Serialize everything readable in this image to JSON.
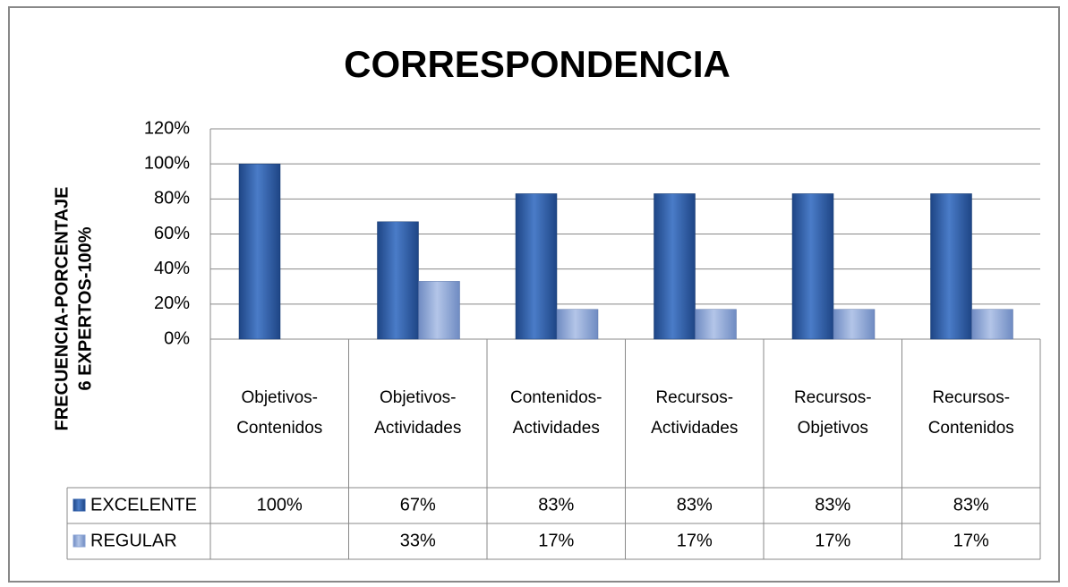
{
  "chart_data": {
    "type": "bar",
    "title": "CORRESPONDENCIA",
    "ylabel": [
      "FRECUENCIA-PORCENTAJE",
      "6 EXPERTOS-100%"
    ],
    "categories": [
      "Objetivos-Contenidos",
      "Objetivos-Actividades",
      "Contenidos-Actividades",
      "Recursos-Actividades",
      "Recursos-Objetivos",
      "Recursos-Contenidos"
    ],
    "series": [
      {
        "name": "EXCELENTE",
        "color": "#2f5ea8",
        "values": [
          100,
          67,
          83,
          83,
          83,
          83
        ],
        "value_labels": [
          "100%",
          "67%",
          "83%",
          "83%",
          "83%",
          "83%"
        ]
      },
      {
        "name": "REGULAR",
        "color": "#8aa3d4",
        "values": [
          null,
          33,
          17,
          17,
          17,
          17
        ],
        "value_labels": [
          null,
          "33%",
          "17%",
          "17%",
          "17%",
          "17%"
        ]
      }
    ],
    "ylim": [
      0,
      120
    ],
    "yticks": [
      {
        "value": 0,
        "label": "0%"
      },
      {
        "value": 20,
        "label": "20%"
      },
      {
        "value": 40,
        "label": "40%"
      },
      {
        "value": 60,
        "label": "60%"
      },
      {
        "value": 80,
        "label": "80%"
      },
      {
        "value": 100,
        "label": "100%"
      },
      {
        "value": 120,
        "label": "120%"
      }
    ],
    "grid": true
  }
}
